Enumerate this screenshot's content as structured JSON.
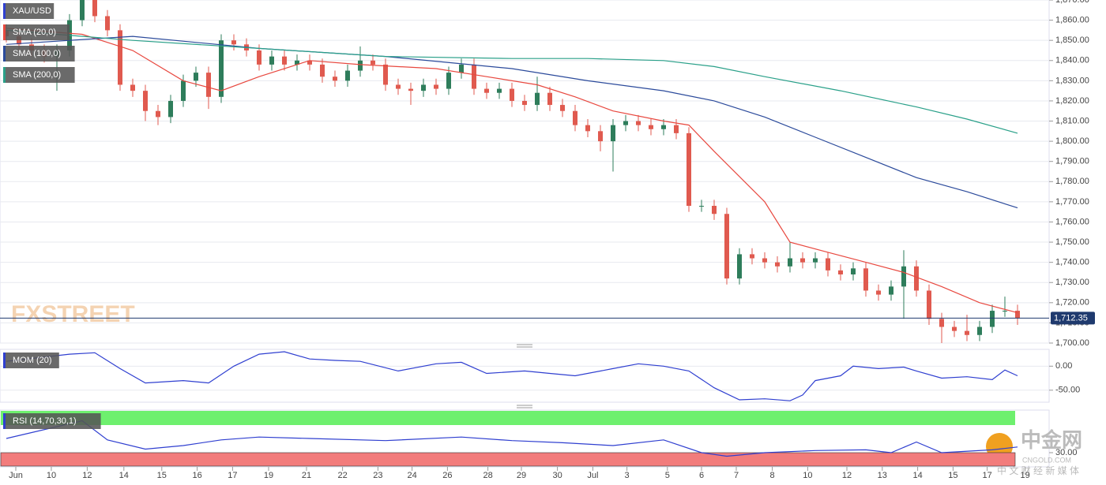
{
  "chart_data": [
    {
      "type": "candlestick",
      "title": "XAU/USD",
      "xlim": [
        -0.5,
        82.5
      ],
      "ylim": [
        1700,
        1870
      ],
      "grid": true,
      "yticks": [
        {
          "value": 1700,
          "label": "1,700.00"
        },
        {
          "value": 1710,
          "label": "1,710.00"
        },
        {
          "value": 1720,
          "label": "1,720.00"
        },
        {
          "value": 1730,
          "label": "1,730.00"
        },
        {
          "value": 1740,
          "label": "1,740.00"
        },
        {
          "value": 1750,
          "label": "1,750.00"
        },
        {
          "value": 1760,
          "label": "1,760.00"
        },
        {
          "value": 1770,
          "label": "1,770.00"
        },
        {
          "value": 1780,
          "label": "1,780.00"
        },
        {
          "value": 1790,
          "label": "1,790.00"
        },
        {
          "value": 1800,
          "label": "1,800.00"
        },
        {
          "value": 1810,
          "label": "1,810.00"
        },
        {
          "value": 1820,
          "label": "1,820.00"
        },
        {
          "value": 1830,
          "label": "1,830.00"
        },
        {
          "value": 1840,
          "label": "1,840.00"
        },
        {
          "value": 1850,
          "label": "1,850.00"
        },
        {
          "value": 1860,
          "label": "1,860.00"
        },
        {
          "value": 1870,
          "label": "1,870.00"
        }
      ],
      "up_color": "#2e7d5b",
      "down_color": "#e05a4f",
      "candles": {
        "open": [
          1855,
          1852,
          1848,
          1845,
          1842,
          1845,
          1860,
          1870,
          1862,
          1855,
          1828,
          1825,
          1815,
          1812,
          1820,
          1830,
          1834,
          1822,
          1850,
          1848,
          1845,
          1838,
          1842,
          1838,
          1840,
          1838,
          1832,
          1830,
          1835,
          1840,
          1838,
          1828,
          1826,
          1825,
          1828,
          1826,
          1834,
          1838,
          1826,
          1824,
          1826,
          1820,
          1818,
          1824,
          1818,
          1815,
          1808,
          1805,
          1800,
          1808,
          1810,
          1808,
          1806,
          1808,
          1804,
          1768,
          1768,
          1764,
          1732,
          1744,
          1742,
          1740,
          1738,
          1742,
          1740,
          1742,
          1736,
          1734,
          1737,
          1726,
          1724,
          1728,
          1738,
          1726,
          1712,
          1708,
          1706,
          1704,
          1708,
          1716,
          1716
        ],
        "high": [
          1858,
          1855,
          1851,
          1848,
          1848,
          1863,
          1873,
          1873,
          1865,
          1858,
          1831,
          1828,
          1818,
          1823,
          1833,
          1837,
          1837,
          1853,
          1853,
          1851,
          1848,
          1845,
          1845,
          1843,
          1843,
          1841,
          1835,
          1838,
          1847,
          1843,
          1841,
          1831,
          1829,
          1831,
          1831,
          1837,
          1841,
          1841,
          1829,
          1829,
          1829,
          1823,
          1832,
          1827,
          1821,
          1818,
          1811,
          1808,
          1811,
          1813,
          1813,
          1811,
          1811,
          1811,
          1807,
          1771,
          1771,
          1767,
          1747,
          1747,
          1745,
          1743,
          1750,
          1745,
          1745,
          1745,
          1739,
          1740,
          1740,
          1729,
          1731,
          1746,
          1741,
          1729,
          1715,
          1711,
          1714,
          1711,
          1719,
          1723,
          1719
        ],
        "low": [
          1849,
          1845,
          1842,
          1839,
          1825,
          1842,
          1857,
          1859,
          1852,
          1825,
          1822,
          1810,
          1808,
          1809,
          1817,
          1827,
          1816,
          1819,
          1845,
          1842,
          1835,
          1835,
          1835,
          1835,
          1835,
          1829,
          1827,
          1827,
          1832,
          1835,
          1825,
          1823,
          1818,
          1822,
          1823,
          1823,
          1831,
          1823,
          1821,
          1821,
          1817,
          1815,
          1815,
          1815,
          1812,
          1805,
          1802,
          1795,
          1785,
          1805,
          1805,
          1803,
          1803,
          1801,
          1765,
          1765,
          1761,
          1729,
          1729,
          1739,
          1737,
          1735,
          1735,
          1737,
          1737,
          1733,
          1731,
          1731,
          1723,
          1721,
          1721,
          1712,
          1723,
          1709,
          1700,
          1703,
          1701,
          1701,
          1705,
          1713,
          1709
        ],
        "close": [
          1852,
          1848,
          1845,
          1842,
          1845,
          1860,
          1870,
          1862,
          1855,
          1828,
          1825,
          1815,
          1812,
          1820,
          1830,
          1834,
          1822,
          1850,
          1848,
          1845,
          1838,
          1842,
          1838,
          1840,
          1838,
          1832,
          1830,
          1835,
          1840,
          1838,
          1828,
          1826,
          1825,
          1828,
          1826,
          1834,
          1838,
          1826,
          1824,
          1826,
          1820,
          1818,
          1824,
          1818,
          1815,
          1808,
          1805,
          1800,
          1808,
          1810,
          1808,
          1806,
          1808,
          1804,
          1768,
          1768,
          1764,
          1732,
          1744,
          1742,
          1740,
          1738,
          1742,
          1740,
          1742,
          1736,
          1734,
          1737,
          1726,
          1724,
          1728,
          1738,
          1726,
          1712,
          1708,
          1706,
          1704,
          1708,
          1716,
          1716,
          1712.35
        ]
      },
      "series": [
        {
          "name": "SMA (20,0)",
          "color": "#e8483f",
          "x": [
            0,
            6,
            10,
            14,
            17,
            20,
            24,
            28,
            34,
            38,
            42,
            45,
            48,
            52,
            54,
            56,
            60,
            62,
            65,
            68,
            71,
            74,
            77,
            80
          ],
          "values": [
            1856,
            1853,
            1845,
            1830,
            1825,
            1832,
            1840,
            1838,
            1836,
            1832,
            1828,
            1822,
            1815,
            1810,
            1808,
            1795,
            1770,
            1750,
            1745,
            1740,
            1735,
            1728,
            1720,
            1715
          ]
        },
        {
          "name": "SMA (100,0)",
          "color": "#2b4a9b",
          "x": [
            0,
            10,
            20,
            30,
            40,
            46,
            52,
            56,
            60,
            64,
            68,
            72,
            76,
            80
          ],
          "values": [
            1848,
            1852,
            1846,
            1842,
            1836,
            1830,
            1825,
            1820,
            1812,
            1802,
            1792,
            1782,
            1775,
            1767
          ]
        },
        {
          "name": "SMA (200,0)",
          "color": "#2aa089",
          "x": [
            0,
            10,
            20,
            30,
            40,
            46,
            52,
            56,
            60,
            66,
            72,
            76,
            80
          ],
          "values": [
            1855,
            1850,
            1846,
            1842,
            1841,
            1841,
            1840,
            1837,
            1832,
            1825,
            1817,
            1811,
            1804
          ]
        }
      ],
      "last_price": 1712.35,
      "last_price_label": "1,712.35"
    },
    {
      "type": "line",
      "title": "MOM (20)",
      "xlim": [
        -0.5,
        82.5
      ],
      "ylim": [
        -75,
        35
      ],
      "grid": true,
      "yticks": [
        {
          "value": 0,
          "label": "0.00"
        },
        {
          "value": -50,
          "label": "-50.00"
        }
      ],
      "series": [
        {
          "color": "#2f3fd0",
          "x": [
            0,
            5,
            7,
            9,
            11,
            14,
            16,
            18,
            20,
            22,
            24,
            26,
            28,
            31,
            34,
            36,
            38,
            41,
            43,
            45,
            48,
            50,
            52,
            54,
            56,
            58,
            60,
            62,
            63,
            64,
            66,
            67,
            69,
            71,
            72,
            74,
            76,
            78,
            79,
            80
          ],
          "values": [
            10,
            25,
            28,
            -5,
            -35,
            -30,
            -35,
            0,
            25,
            30,
            15,
            12,
            10,
            -10,
            5,
            8,
            -15,
            -10,
            -15,
            -20,
            -5,
            5,
            0,
            -10,
            -45,
            -70,
            -68,
            -72,
            -60,
            -30,
            -20,
            0,
            -5,
            -2,
            -10,
            -25,
            -22,
            -28,
            -8,
            -20
          ]
        }
      ]
    },
    {
      "type": "line",
      "title": "RSI (14,70,30,1)",
      "xlim": [
        -0.5,
        82.5
      ],
      "ylim": [
        10,
        90
      ],
      "overbought": 70,
      "oversold": 30,
      "overbought_color": "#6ef06e",
      "oversold_color": "#f27c7c",
      "yticks": [
        {
          "value": 30,
          "label": "30.00"
        }
      ],
      "xticks": [
        {
          "value": 0.75,
          "label": "Jun"
        },
        {
          "value": 3.56,
          "label": "10"
        },
        {
          "value": 6.4,
          "label": "12"
        },
        {
          "value": 9.3,
          "label": "14"
        },
        {
          "value": 12.3,
          "label": "15"
        },
        {
          "value": 15.1,
          "label": "16"
        },
        {
          "value": 17.9,
          "label": "17"
        },
        {
          "value": 20.75,
          "label": "19"
        },
        {
          "value": 23.75,
          "label": "21"
        },
        {
          "value": 26.6,
          "label": "22"
        },
        {
          "value": 29.4,
          "label": "23"
        },
        {
          "value": 32.1,
          "label": "24"
        },
        {
          "value": 34.9,
          "label": "26"
        },
        {
          "value": 38.1,
          "label": "28"
        },
        {
          "value": 40.75,
          "label": "29"
        },
        {
          "value": 43.6,
          "label": "30"
        },
        {
          "value": 46.4,
          "label": "Jul"
        },
        {
          "value": 49.1,
          "label": "3"
        },
        {
          "value": 52.3,
          "label": "5"
        },
        {
          "value": 55,
          "label": "6"
        },
        {
          "value": 57.75,
          "label": "7"
        },
        {
          "value": 60.6,
          "label": "8"
        },
        {
          "value": 63.4,
          "label": "10"
        },
        {
          "value": 66.5,
          "label": "12"
        },
        {
          "value": 69.3,
          "label": "13"
        },
        {
          "value": 72.1,
          "label": "14"
        },
        {
          "value": 74.9,
          "label": "15"
        },
        {
          "value": 77.6,
          "label": "17"
        },
        {
          "value": 80.6,
          "label": "19"
        }
      ],
      "series": [
        {
          "color": "#2f3fd0",
          "x": [
            0,
            6,
            8,
            11,
            14,
            17,
            20,
            24,
            30,
            36,
            40,
            44,
            48,
            52,
            55,
            57,
            60,
            64,
            68,
            70,
            72,
            74,
            78,
            80
          ],
          "values": [
            50,
            75,
            48,
            35,
            40,
            48,
            52,
            50,
            47,
            52,
            47,
            44,
            40,
            48,
            30,
            25,
            30,
            33,
            34,
            30,
            45,
            30,
            34,
            38
          ]
        }
      ]
    }
  ],
  "branding": {
    "watermark": "FXSTREET",
    "logo": "中金网",
    "site": "CNGOLD.COM",
    "tagline": "中 文 财 经 新 媒 体"
  }
}
